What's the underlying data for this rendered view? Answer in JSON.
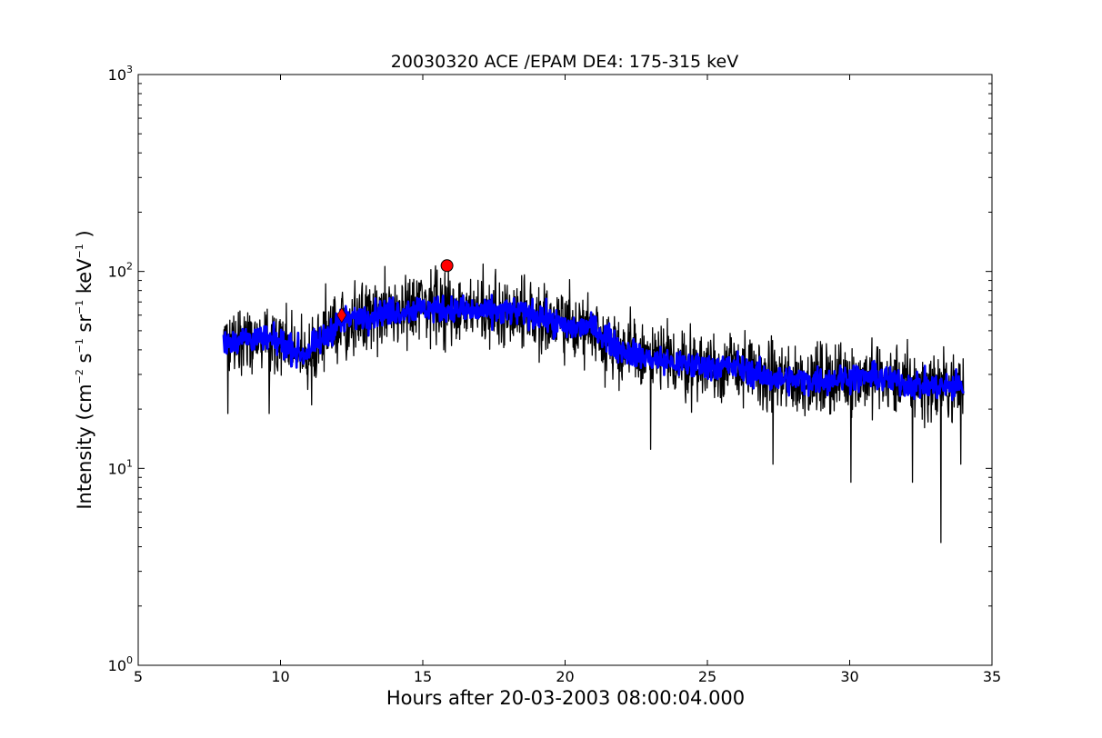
{
  "chart_data": {
    "type": "line",
    "title": "20030320 ACE /EPAM DE4: 175-315 keV",
    "xlabel": "Hours after 20-03-2003 08:00:04.000",
    "ylabel": {
      "prefix": "Intensity (cm",
      "cm_exp": "−2",
      "s": " s",
      "s_exp": "−1",
      "sr": " sr",
      "sr_exp": "−1",
      "kev": " keV",
      "kev_exp": "−1",
      "suffix": " )"
    },
    "xlim": [
      5,
      35
    ],
    "ylim": [
      1,
      1000
    ],
    "yscale": "log",
    "grid": false,
    "x_ticks": [
      5,
      10,
      15,
      20,
      25,
      30,
      35
    ],
    "x_tick_labels": [
      "5",
      "10",
      "15",
      "20",
      "25",
      "30",
      "35"
    ],
    "y_ticks": [
      1,
      10,
      100,
      1000
    ],
    "y_tick_labels": [
      {
        "base": "10",
        "exp": "0"
      },
      {
        "base": "10",
        "exp": "1"
      },
      {
        "base": "10",
        "exp": "2"
      },
      {
        "base": "10",
        "exp": "3"
      }
    ],
    "series": [
      {
        "role": "raw",
        "color": "#000000",
        "x_range": [
          8.0,
          34.0
        ],
        "trend": [
          {
            "x": 8.0,
            "y": 44
          },
          {
            "x": 9.0,
            "y": 46
          },
          {
            "x": 10.0,
            "y": 43
          },
          {
            "x": 10.8,
            "y": 38
          },
          {
            "x": 11.5,
            "y": 45
          },
          {
            "x": 12.0,
            "y": 55
          },
          {
            "x": 13.0,
            "y": 60
          },
          {
            "x": 14.0,
            "y": 63
          },
          {
            "x": 15.0,
            "y": 65
          },
          {
            "x": 16.0,
            "y": 64
          },
          {
            "x": 17.0,
            "y": 62
          },
          {
            "x": 18.0,
            "y": 63
          },
          {
            "x": 19.0,
            "y": 60
          },
          {
            "x": 20.0,
            "y": 52
          },
          {
            "x": 21.0,
            "y": 52
          },
          {
            "x": 22.0,
            "y": 40
          },
          {
            "x": 23.0,
            "y": 36
          },
          {
            "x": 24.0,
            "y": 34
          },
          {
            "x": 25.0,
            "y": 33
          },
          {
            "x": 26.0,
            "y": 33
          },
          {
            "x": 27.0,
            "y": 29
          },
          {
            "x": 28.0,
            "y": 28
          },
          {
            "x": 29.0,
            "y": 28
          },
          {
            "x": 30.0,
            "y": 29
          },
          {
            "x": 31.0,
            "y": 29
          },
          {
            "x": 32.0,
            "y": 27
          },
          {
            "x": 33.0,
            "y": 26
          },
          {
            "x": 34.0,
            "y": 26
          }
        ],
        "spikes": [
          {
            "x": 8.15,
            "y": 19
          },
          {
            "x": 9.6,
            "y": 19
          },
          {
            "x": 11.1,
            "y": 21
          },
          {
            "x": 15.9,
            "y": 103
          },
          {
            "x": 23.0,
            "y": 12.5
          },
          {
            "x": 27.3,
            "y": 10.5
          },
          {
            "x": 30.05,
            "y": 8.5
          },
          {
            "x": 32.2,
            "y": 8.5
          },
          {
            "x": 33.2,
            "y": 4.2
          },
          {
            "x": 33.9,
            "y": 10.5
          }
        ]
      },
      {
        "role": "smoothed",
        "color": "#0000ff",
        "x_range": [
          8.0,
          34.0
        ]
      }
    ],
    "markers": [
      {
        "shape": "circle",
        "x": 15.85,
        "y": 107,
        "color": "#ff0000"
      },
      {
        "shape": "diamond",
        "x": 12.15,
        "y": 60,
        "color": "#ff0000"
      }
    ]
  }
}
